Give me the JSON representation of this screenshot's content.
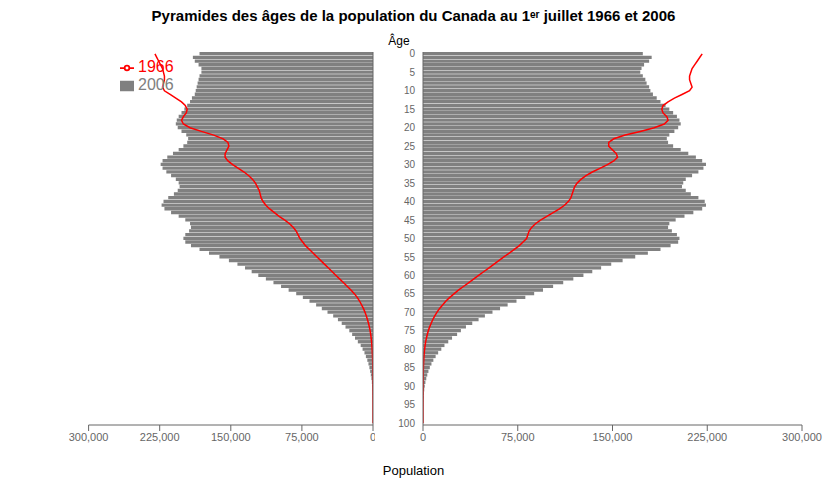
{
  "chart_data": [
    {
      "type": "bar",
      "orientation": "horizontal",
      "title": "Pyramides des âges de la population du Canada au 1ᵉʳ juillet 1966 et 2006",
      "xlabel": "Population",
      "legend": "upper left",
      "tick_labels": "x",
      "y": [
        0,
        1,
        2,
        3,
        4,
        5,
        6,
        7,
        8,
        9,
        10,
        11,
        12,
        13,
        14,
        15,
        16,
        17,
        18,
        19,
        20,
        21,
        22,
        23,
        24,
        25,
        26,
        27,
        28,
        29,
        30,
        31,
        32,
        33,
        34,
        35,
        36,
        37,
        38,
        39,
        40,
        41,
        42,
        43,
        44,
        45,
        46,
        47,
        48,
        49,
        50,
        51,
        52,
        53,
        54,
        55,
        56,
        57,
        58,
        59,
        60,
        61,
        62,
        63,
        64,
        65,
        66,
        67,
        68,
        69,
        70,
        71,
        72,
        73,
        74,
        75,
        76,
        77,
        78,
        79,
        80,
        81,
        82,
        83,
        84,
        85,
        86,
        87,
        88,
        89,
        90,
        91,
        92,
        93,
        94,
        95,
        96,
        97,
        98,
        99,
        100
      ],
      "ylim": [
        -0.5,
        100.5
      ],
      "yticks": [
        0,
        5,
        10,
        15,
        20,
        25,
        30,
        35,
        40,
        45,
        50,
        55,
        60,
        65,
        70,
        75,
        80,
        85,
        90,
        95,
        100
      ],
      "xlim": [
        300000,
        0
      ],
      "xticks": [
        0,
        {
          "value": 75000,
          "label": "75,000"
        },
        {
          "value": 150000,
          "label": "150,000"
        },
        {
          "value": 225000,
          "label": "225,000"
        },
        {
          "value": 300000,
          "label": "300,000"
        }
      ],
      "series": [
        {
          "name": "1966",
          "type": "line",
          "color": "#ff0000",
          "values": [
            230000,
            228000,
            226000,
            224000,
            222000,
            221000,
            220000,
            220000,
            221000,
            222000,
            220000,
            214000,
            208000,
            202000,
            198000,
            196000,
            197000,
            200000,
            202000,
            200000,
            193000,
            181000,
            168000,
            158000,
            153000,
            152000,
            154000,
            156000,
            156000,
            153000,
            148000,
            142000,
            136000,
            131000,
            127000,
            124000,
            122000,
            120000,
            119000,
            118000,
            116000,
            113000,
            109000,
            104000,
            99000,
            93000,
            88000,
            84000,
            81000,
            79000,
            77000,
            74000,
            71000,
            67000,
            63000,
            59000,
            55000,
            51000,
            47000,
            43000,
            39000,
            35000,
            31000,
            27000,
            23000,
            19500,
            16500,
            14000,
            12000,
            10000,
            8400,
            7000,
            5800,
            4700,
            3800,
            3000,
            2400,
            1900,
            1500,
            1150,
            880,
            660,
            490,
            360,
            260,
            185,
            130,
            90,
            62,
            42,
            28,
            18,
            11,
            7,
            4,
            2,
            1,
            0,
            0,
            0,
            0
          ]
        },
        {
          "name": "2006",
          "type": "bar",
          "color": "#808080",
          "values": [
            183000,
            190000,
            188000,
            184000,
            181000,
            181000,
            183000,
            184000,
            185000,
            186000,
            187000,
            188000,
            191000,
            193000,
            196000,
            199000,
            202000,
            205000,
            207000,
            208000,
            206000,
            202000,
            197000,
            195000,
            196000,
            200000,
            205000,
            211000,
            217000,
            222000,
            224000,
            222000,
            218000,
            213000,
            208000,
            205000,
            204000,
            206000,
            210000,
            216000,
            221000,
            223000,
            220000,
            213000,
            205000,
            198000,
            193000,
            192000,
            194000,
            198000,
            200000,
            198000,
            192000,
            183000,
            173000,
            162000,
            152000,
            143000,
            135000,
            128000,
            121000,
            113000,
            105000,
            97000,
            89000,
            81000,
            74000,
            67000,
            60000,
            54000,
            48000,
            42000,
            37000,
            33000,
            29000,
            25000,
            22000,
            19000,
            16000,
            13000,
            11000,
            9000,
            7500,
            6000,
            4800,
            3800,
            3000,
            2300,
            1700,
            1200,
            850,
            580,
            380,
            240,
            145,
            85,
            45,
            22,
            10,
            4,
            1
          ]
        }
      ]
    },
    {
      "type": "bar",
      "orientation": "horizontal",
      "ylabel": "Âge",
      "y": [
        0,
        1,
        2,
        3,
        4,
        5,
        6,
        7,
        8,
        9,
        10,
        11,
        12,
        13,
        14,
        15,
        16,
        17,
        18,
        19,
        20,
        21,
        22,
        23,
        24,
        25,
        26,
        27,
        28,
        29,
        30,
        31,
        32,
        33,
        34,
        35,
        36,
        37,
        38,
        39,
        40,
        41,
        42,
        43,
        44,
        45,
        46,
        47,
        48,
        49,
        50,
        51,
        52,
        53,
        54,
        55,
        56,
        57,
        58,
        59,
        60,
        61,
        62,
        63,
        64,
        65,
        66,
        67,
        68,
        69,
        70,
        71,
        72,
        73,
        74,
        75,
        76,
        77,
        78,
        79,
        80,
        81,
        82,
        83,
        84,
        85,
        86,
        87,
        88,
        89,
        90,
        91,
        92,
        93,
        94,
        95,
        96,
        97,
        98,
        99,
        100
      ],
      "ylim": [
        -0.5,
        100.5
      ],
      "yticks": [
        0,
        5,
        10,
        15,
        20,
        25,
        30,
        35,
        40,
        45,
        50,
        55,
        60,
        65,
        70,
        75,
        80,
        85,
        90,
        95,
        100
      ],
      "xlim": [
        0,
        300000
      ],
      "xticks": [
        0,
        {
          "value": 75000,
          "label": "75,000"
        },
        {
          "value": 150000,
          "label": "150,000"
        },
        {
          "value": 225000,
          "label": "225,000"
        },
        {
          "value": 300000,
          "label": "300,000"
        }
      ],
      "series": [
        {
          "name": "1966",
          "type": "line",
          "color": "#ff0000",
          "values": [
            221000,
            219000,
            217000,
            215000,
            213000,
            212000,
            211000,
            211000,
            212000,
            213000,
            211000,
            205000,
            199000,
            194000,
            190000,
            189000,
            190000,
            193000,
            194000,
            191000,
            183000,
            172000,
            160000,
            151000,
            147000,
            147000,
            150000,
            153000,
            154000,
            151000,
            146000,
            140000,
            134000,
            129000,
            125000,
            122000,
            120000,
            119000,
            118000,
            117000,
            115000,
            112000,
            108000,
            103000,
            98000,
            93000,
            89000,
            86000,
            84000,
            83000,
            82000,
            79000,
            76000,
            72000,
            68000,
            64000,
            60000,
            56000,
            52000,
            48000,
            44000,
            40000,
            36000,
            32000,
            28000,
            24500,
            21000,
            18000,
            15500,
            13000,
            11000,
            9200,
            7700,
            6400,
            5200,
            4200,
            3400,
            2700,
            2100,
            1650,
            1280,
            980,
            740,
            560,
            420,
            310,
            230,
            168,
            120,
            85,
            59,
            40,
            27,
            17,
            10,
            6,
            3,
            1,
            0,
            0,
            0
          ]
        },
        {
          "name": "2006",
          "type": "bar",
          "color": "#808080",
          "values": [
            174000,
            181000,
            179000,
            175000,
            173000,
            172000,
            174000,
            176000,
            177000,
            179000,
            180000,
            182000,
            185000,
            188000,
            192000,
            195000,
            198000,
            201000,
            203000,
            204000,
            202000,
            199000,
            195000,
            193000,
            194000,
            198000,
            204000,
            210000,
            216000,
            221000,
            224000,
            222000,
            218000,
            213000,
            208000,
            206000,
            205000,
            208000,
            212000,
            218000,
            223000,
            224000,
            221000,
            214000,
            207000,
            200000,
            195000,
            194000,
            197000,
            201000,
            203000,
            202000,
            196000,
            188000,
            178000,
            168000,
            158000,
            149000,
            141000,
            134000,
            127000,
            119000,
            111000,
            103000,
            95000,
            88000,
            81000,
            74000,
            67000,
            61000,
            55000,
            49000,
            44000,
            39000,
            34000,
            30000,
            27000,
            23000,
            20000,
            17000,
            14500,
            12000,
            10000,
            8200,
            6700,
            5400,
            4300,
            3400,
            2600,
            1900,
            1400,
            980,
            660,
            430,
            270,
            160,
            90,
            47,
            22,
            9,
            3
          ]
        }
      ]
    }
  ]
}
